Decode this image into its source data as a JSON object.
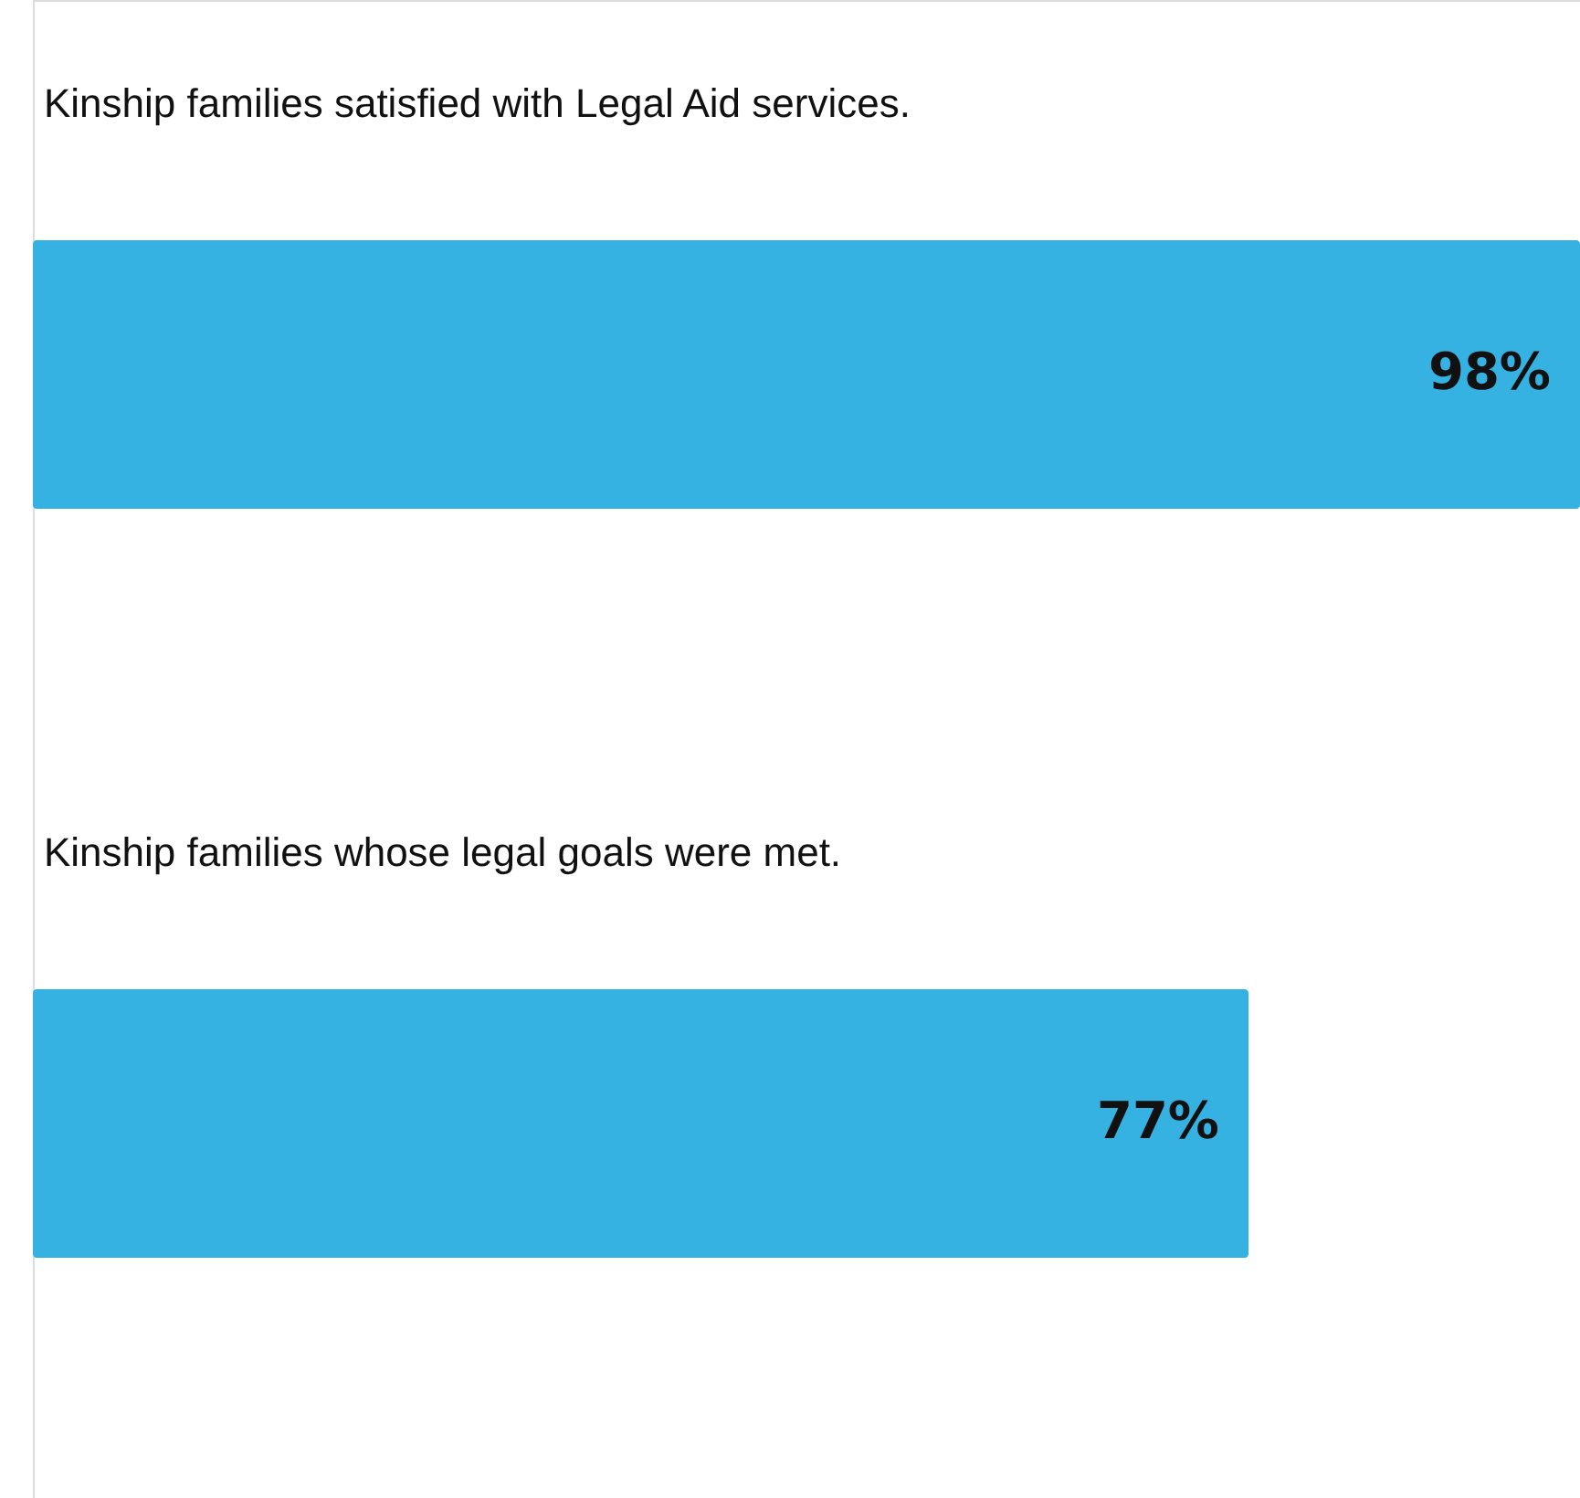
{
  "chart_data": {
    "type": "bar",
    "orientation": "horizontal",
    "categories": [
      "Kinship families satisfied with Legal Aid services.",
      "Kinship families whose legal goals were met."
    ],
    "values": [
      98,
      77
    ],
    "color": "#35b2e2",
    "value_labels": [
      "98%",
      "77%"
    ],
    "xlim": [
      0,
      98
    ],
    "tick_labels": false
  }
}
